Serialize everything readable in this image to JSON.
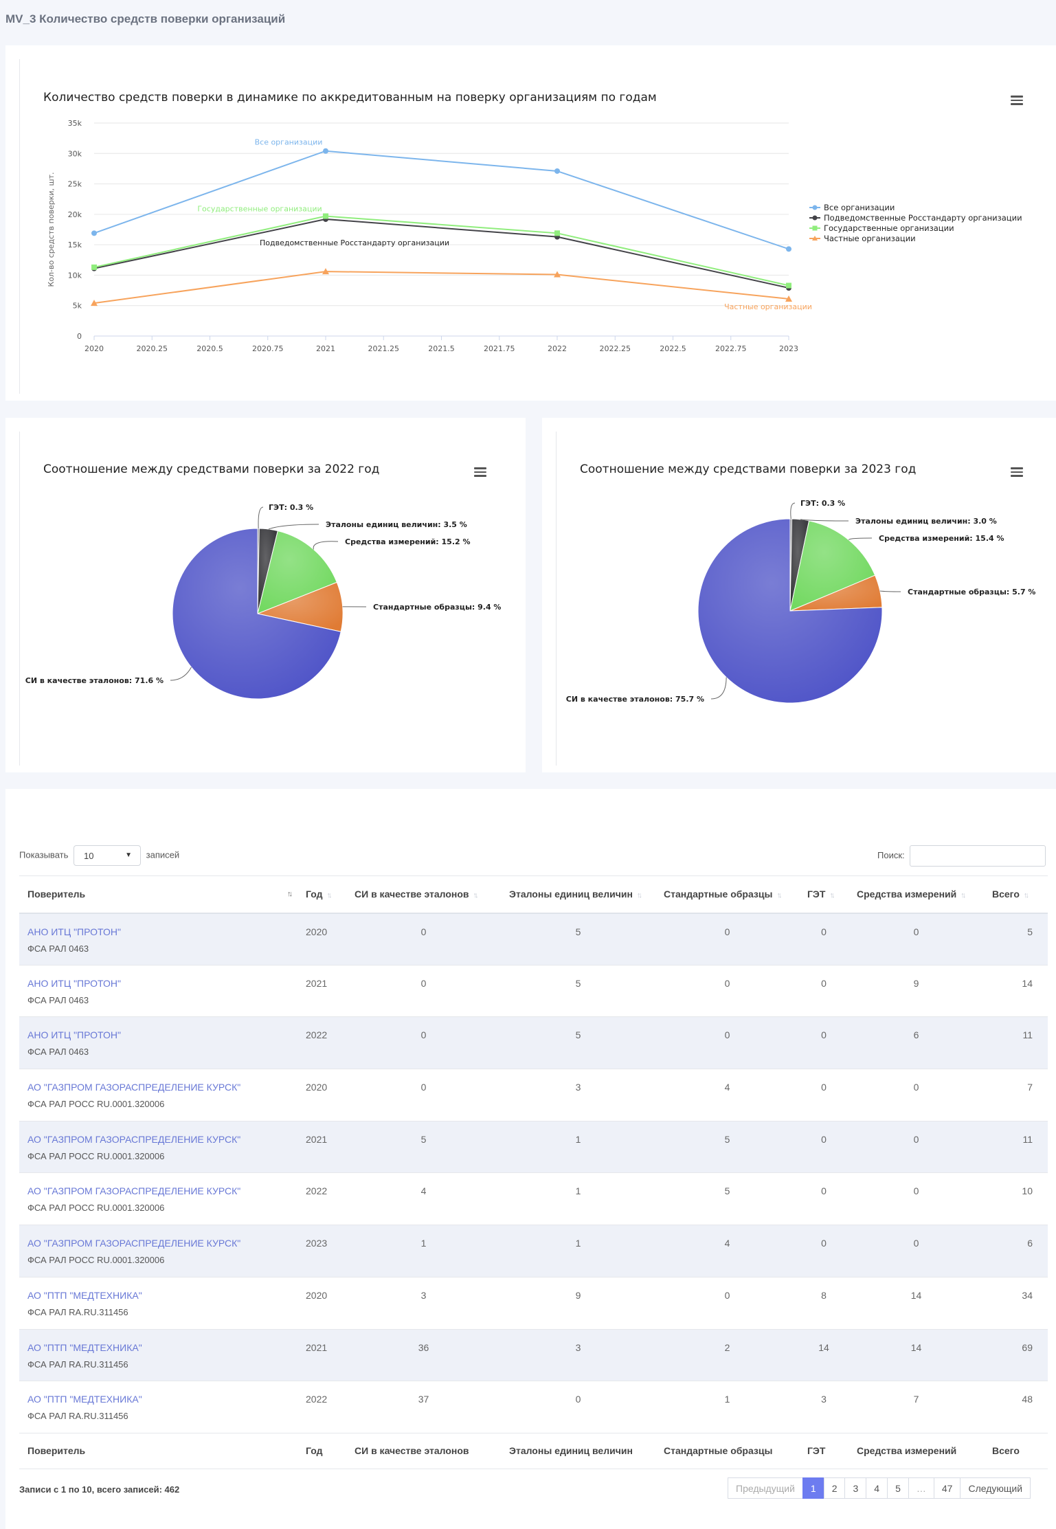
{
  "page_title": "MV_3 Количество средств поверки организаций",
  "line_chart": {
    "title": "Количество средств поверки в динамике по аккредитованным на поверку организациям по годам",
    "ylabel": "Кол-во средств поверки, шт.",
    "y_ticks": [
      "0",
      "5k",
      "10k",
      "15k",
      "20k",
      "25k",
      "30k",
      "35k"
    ],
    "x_ticks": [
      "2020",
      "2020.25",
      "2020.5",
      "2020.75",
      "2021",
      "2021.25",
      "2021.5",
      "2021.75",
      "2022",
      "2022.25",
      "2022.5",
      "2022.75",
      "2023"
    ],
    "legend": [
      "Все организации",
      "Подведомственные Росстандарту организации",
      "Государственные организации",
      "Частные организации"
    ]
  },
  "pie_2022": {
    "title": "Соотношение между средствами поверки за 2022 год",
    "labels": [
      "ГЭТ: 0.3 %",
      "Эталоны единиц величин: 3.5 %",
      "Средства измерений: 15.2 %",
      "Стандартные образцы: 9.4 %",
      "СИ в качестве эталонов: 71.6 %"
    ]
  },
  "pie_2023": {
    "title": "Соотношение между средствами поверки за 2023 год",
    "labels": [
      "ГЭТ: 0.3 %",
      "Эталоны единиц величин: 3.0 %",
      "Средства измерений: 15.4 %",
      "Стандартные образцы: 5.7 %",
      "СИ в качестве эталонов: 75.7 %"
    ]
  },
  "chart_data": [
    {
      "type": "line",
      "title": "Количество средств поверки в динамике по аккредитованным на поверку организациям по годам",
      "ylabel": "Кол-во средств поверки, шт.",
      "x": [
        2020,
        2021,
        2022,
        2023
      ],
      "xlim": [
        2020,
        2023
      ],
      "ylim": [
        0,
        35000
      ],
      "legend_position": "right",
      "series": [
        {
          "name": "Все организации",
          "color": "#7cb5ec",
          "values": [
            16900,
            30400,
            27100,
            14300
          ]
        },
        {
          "name": "Подведомственные Росстандарту организации",
          "color": "#434348",
          "values": [
            11100,
            19200,
            16300,
            7900
          ]
        },
        {
          "name": "Государственные организации",
          "color": "#90ed7d",
          "values": [
            11300,
            19700,
            16900,
            8300
          ]
        },
        {
          "name": "Частные организации",
          "color": "#f7a35c",
          "values": [
            5400,
            10600,
            10100,
            6100
          ]
        }
      ]
    },
    {
      "type": "pie",
      "title": "Соотношение между средствами поверки за 2022 год",
      "categories": [
        "ГЭТ",
        "Эталоны единиц величин",
        "Средства измерений",
        "Стандартные образцы",
        "СИ в качестве эталонов"
      ],
      "values": [
        0.3,
        3.5,
        15.2,
        9.4,
        71.6
      ],
      "colors": [
        "#6e6e72",
        "#2f2f33",
        "#70d85e",
        "#e07b34",
        "#4d52c7"
      ]
    },
    {
      "type": "pie",
      "title": "Соотношение между средствами поверки за 2023 год",
      "categories": [
        "ГЭТ",
        "Эталоны единиц величин",
        "Средства измерений",
        "Стандартные образцы",
        "СИ в качестве эталонов"
      ],
      "values": [
        0.3,
        3.0,
        15.4,
        5.7,
        75.7
      ],
      "colors": [
        "#6e6e72",
        "#2f2f33",
        "#70d85e",
        "#e07b34",
        "#4d52c7"
      ]
    }
  ],
  "table": {
    "show_label": "Показывать",
    "show_value": "10",
    "entries_label": "записей",
    "search_label": "Поиск:",
    "columns": [
      "Поверитель",
      "Год",
      "СИ в качестве эталонов",
      "Эталоны единиц величин",
      "Стандартные образцы",
      "ГЭТ",
      "Средства измерений",
      "Всего"
    ],
    "rows": [
      {
        "name": "АНО ИТЦ \"ПРОТОН\"",
        "sub": "ФСА РАЛ 0463",
        "year": "2020",
        "si": "0",
        "et": "5",
        "so": "0",
        "get": "0",
        "sm": "0",
        "total": "5"
      },
      {
        "name": "АНО ИТЦ \"ПРОТОН\"",
        "sub": "ФСА РАЛ 0463",
        "year": "2021",
        "si": "0",
        "et": "5",
        "so": "0",
        "get": "0",
        "sm": "9",
        "total": "14"
      },
      {
        "name": "АНО ИТЦ \"ПРОТОН\"",
        "sub": "ФСА РАЛ 0463",
        "year": "2022",
        "si": "0",
        "et": "5",
        "so": "0",
        "get": "0",
        "sm": "6",
        "total": "11"
      },
      {
        "name": "АО \"ГАЗПРОМ ГАЗОРАСПРЕДЕЛЕНИЕ КУРСК\"",
        "sub": "ФСА РАЛ РОСС RU.0001.320006",
        "year": "2020",
        "si": "0",
        "et": "3",
        "so": "4",
        "get": "0",
        "sm": "0",
        "total": "7"
      },
      {
        "name": "АО \"ГАЗПРОМ ГАЗОРАСПРЕДЕЛЕНИЕ КУРСК\"",
        "sub": "ФСА РАЛ РОСС RU.0001.320006",
        "year": "2021",
        "si": "5",
        "et": "1",
        "so": "5",
        "get": "0",
        "sm": "0",
        "total": "11"
      },
      {
        "name": "АО \"ГАЗПРОМ ГАЗОРАСПРЕДЕЛЕНИЕ КУРСК\"",
        "sub": "ФСА РАЛ РОСС RU.0001.320006",
        "year": "2022",
        "si": "4",
        "et": "1",
        "so": "5",
        "get": "0",
        "sm": "0",
        "total": "10"
      },
      {
        "name": "АО \"ГАЗПРОМ ГАЗОРАСПРЕДЕЛЕНИЕ КУРСК\"",
        "sub": "ФСА РАЛ РОСС RU.0001.320006",
        "year": "2023",
        "si": "1",
        "et": "1",
        "so": "4",
        "get": "0",
        "sm": "0",
        "total": "6"
      },
      {
        "name": "АО \"ПТП \"МЕДТЕХНИКА\"",
        "sub": "ФСА РАЛ RA.RU.311456",
        "year": "2020",
        "si": "3",
        "et": "9",
        "so": "0",
        "get": "8",
        "sm": "14",
        "total": "34"
      },
      {
        "name": "АО \"ПТП \"МЕДТЕХНИКА\"",
        "sub": "ФСА РАЛ RA.RU.311456",
        "year": "2021",
        "si": "36",
        "et": "3",
        "so": "2",
        "get": "14",
        "sm": "14",
        "total": "69"
      },
      {
        "name": "АО \"ПТП \"МЕДТЕХНИКА\"",
        "sub": "ФСА РАЛ RA.RU.311456",
        "year": "2022",
        "si": "37",
        "et": "0",
        "so": "1",
        "get": "3",
        "sm": "7",
        "total": "48"
      }
    ],
    "info": "Записи с 1 по 10, всего записей: 462",
    "pagination": {
      "prev": "Предыдущий",
      "pages": [
        "1",
        "2",
        "3",
        "4",
        "5",
        "…",
        "47"
      ],
      "next": "Следующий",
      "active": "1"
    }
  }
}
